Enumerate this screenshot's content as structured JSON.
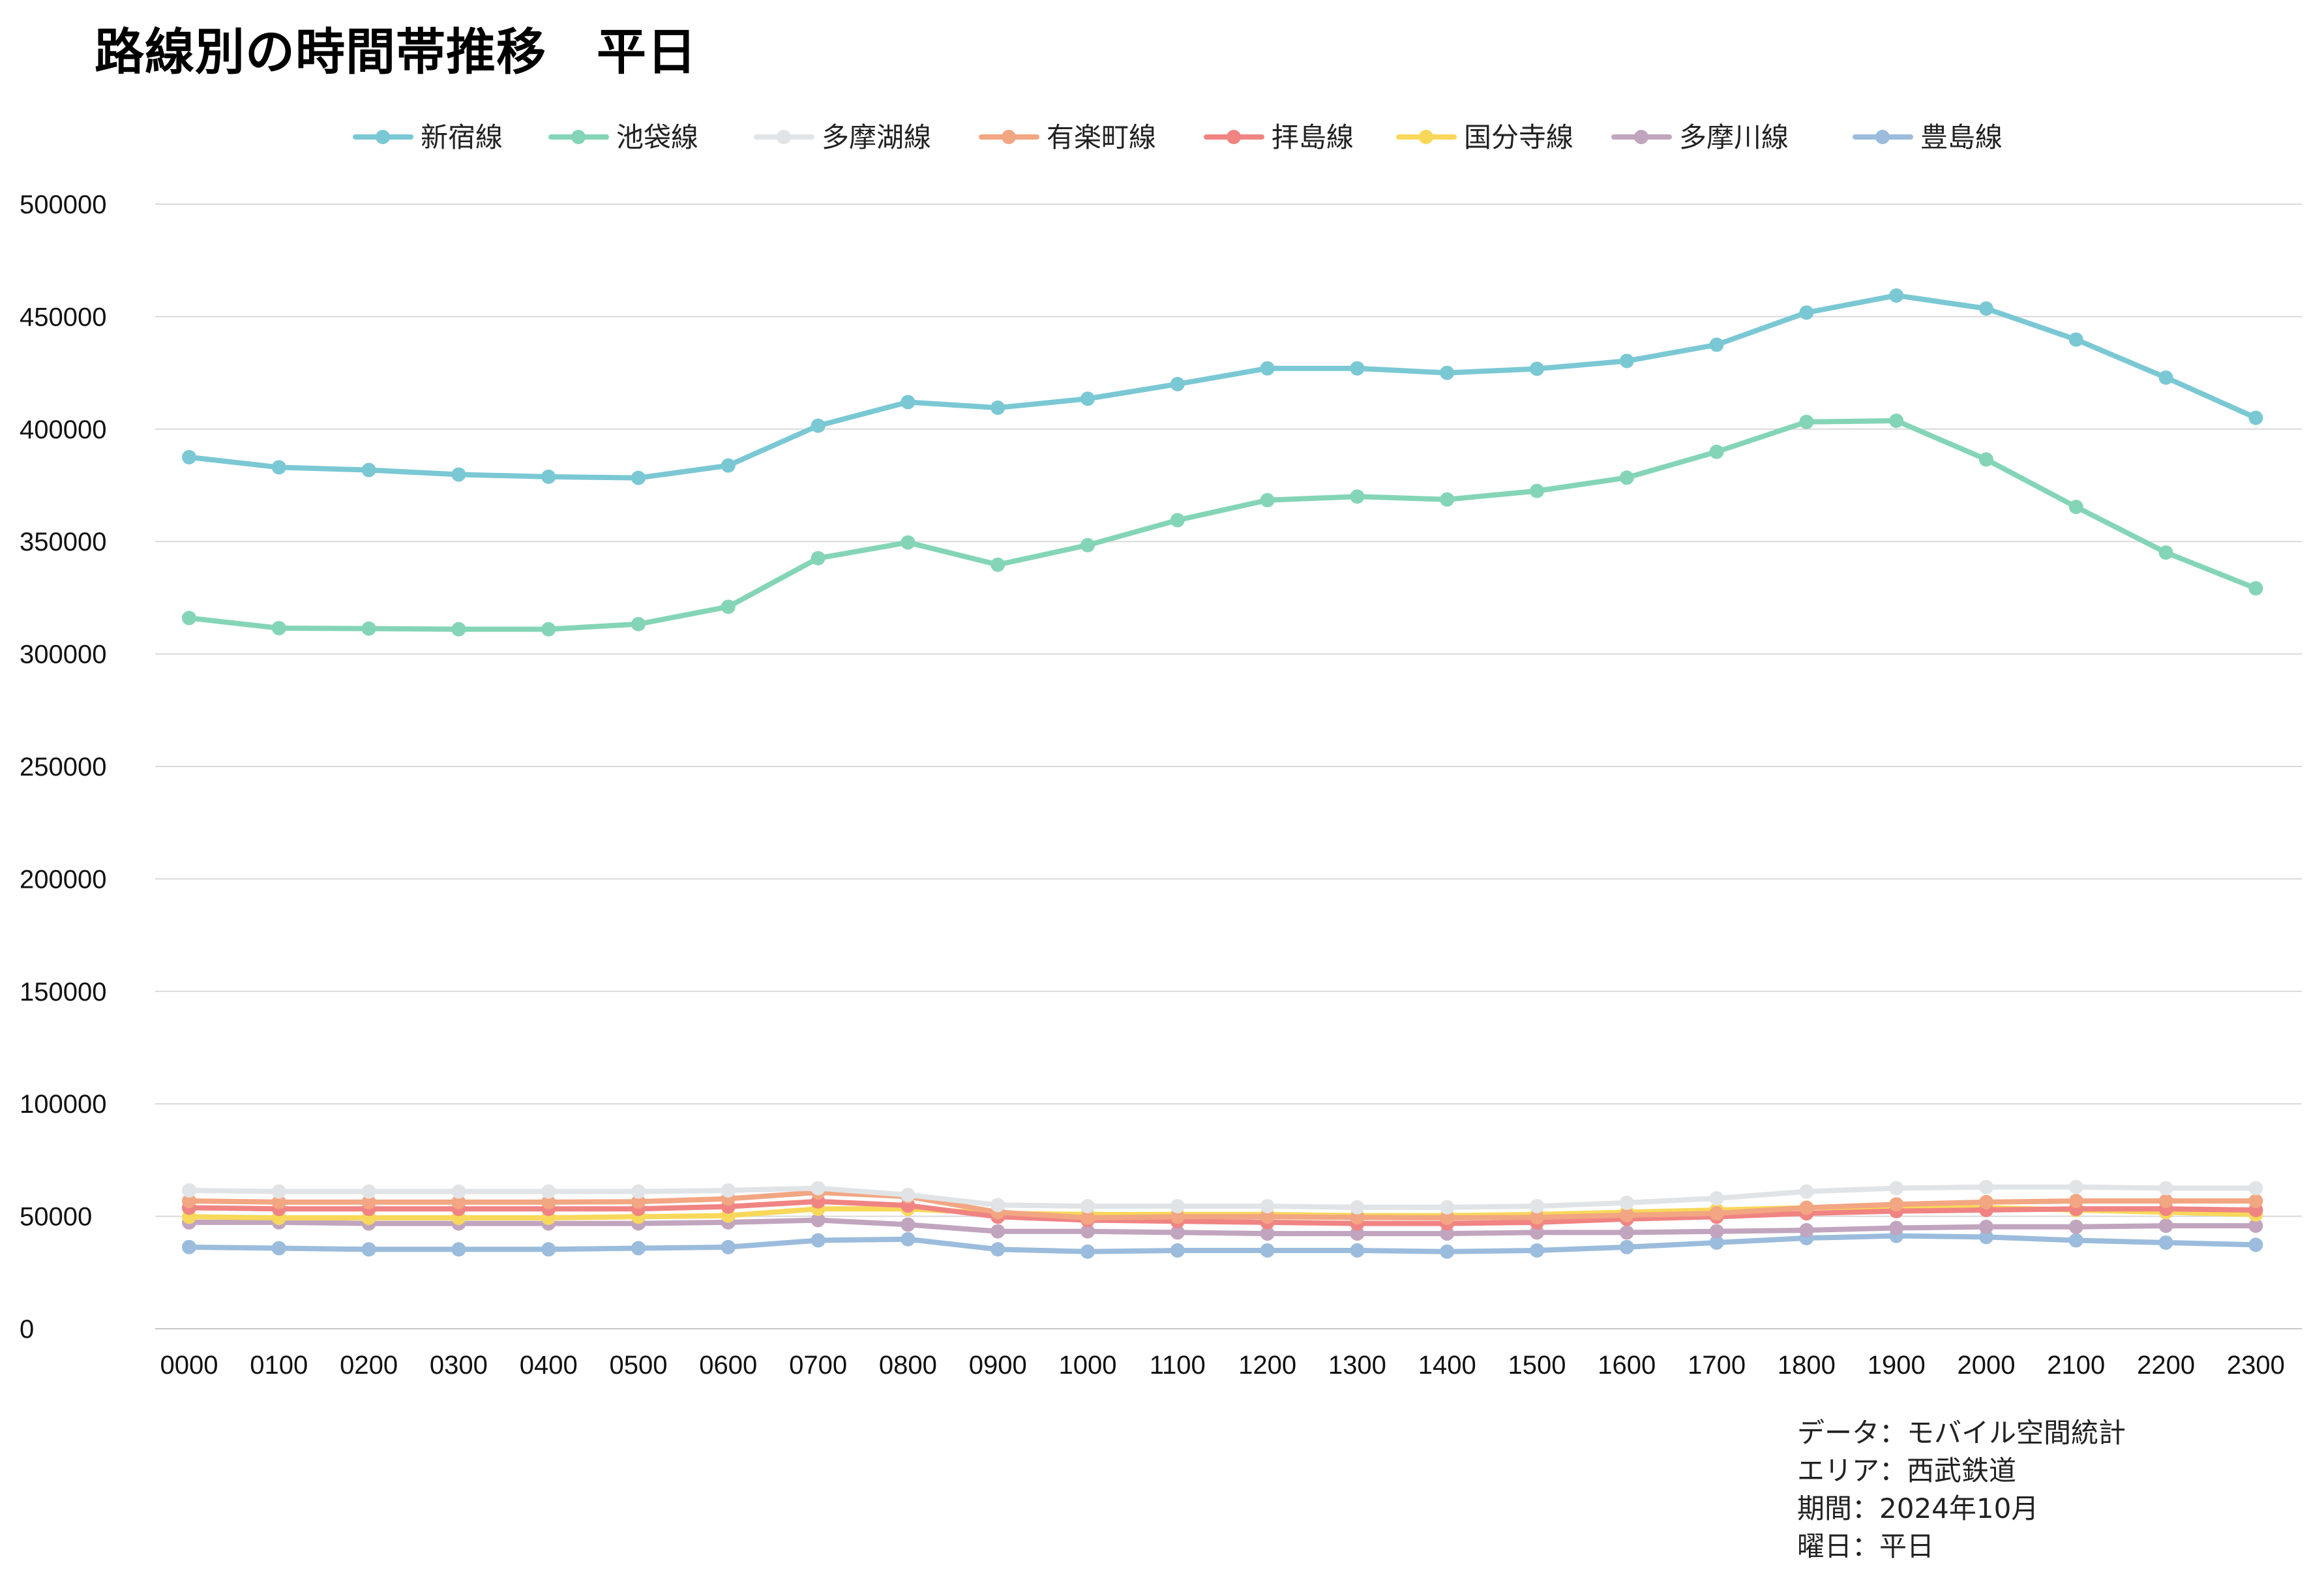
{
  "title": "路線別の時間帯推移　平日",
  "notes": {
    "data": "データ：モバイル空間統計",
    "area": "エリア：西武鉄道",
    "period": "期間：2024年10月",
    "weekday": "曜日：平日"
  },
  "chart_data": {
    "type": "line",
    "title": "路線別の時間帯推移　平日",
    "xlabel": "",
    "ylabel": "",
    "ylim": [
      0,
      500000
    ],
    "yticks": [
      0,
      50000,
      100000,
      150000,
      200000,
      250000,
      300000,
      350000,
      400000,
      450000,
      500000
    ],
    "grid": true,
    "legend_position": "top",
    "categories": [
      "0000",
      "0100",
      "0200",
      "0300",
      "0400",
      "0500",
      "0600",
      "0700",
      "0800",
      "0900",
      "1000",
      "1100",
      "1200",
      "1300",
      "1400",
      "1500",
      "1600",
      "1700",
      "1800",
      "1900",
      "2000",
      "2100",
      "2200",
      "2300"
    ],
    "series": [
      {
        "name": "新宿線",
        "color": "#7AC8D4",
        "values": [
          387500,
          383000,
          381800,
          379800,
          378800,
          378300,
          383800,
          401500,
          412000,
          409500,
          413500,
          420000,
          427000,
          427000,
          425000,
          426800,
          430300,
          437500,
          451800,
          459400,
          453600,
          439800,
          422900,
          405000
        ]
      },
      {
        "name": "池袋線",
        "color": "#84D5B7",
        "values": [
          316000,
          311500,
          311300,
          311000,
          311000,
          313300,
          321000,
          342600,
          349600,
          339700,
          348400,
          359500,
          368400,
          370000,
          368700,
          372500,
          378400,
          389900,
          403200,
          403700,
          386500,
          365400,
          345100,
          329200
        ]
      },
      {
        "name": "多摩湖線",
        "color": "#E1E4E6",
        "values": [
          61500,
          61000,
          61000,
          61000,
          61000,
          61000,
          61500,
          62500,
          59500,
          55000,
          54500,
          54500,
          54500,
          54000,
          54000,
          54500,
          56000,
          58000,
          61000,
          62500,
          63000,
          63000,
          62500,
          62500
        ]
      },
      {
        "name": "有楽町線",
        "color": "#F2A682",
        "values": [
          56800,
          56300,
          56300,
          56300,
          56300,
          56500,
          57800,
          60600,
          58800,
          51800,
          49300,
          49800,
          49800,
          49500,
          49300,
          49500,
          50500,
          51300,
          53800,
          55300,
          56300,
          56800,
          56800,
          56800
        ]
      },
      {
        "name": "拝島線",
        "color": "#F08483",
        "values": [
          53800,
          53300,
          53300,
          53300,
          53300,
          53300,
          54300,
          56600,
          54800,
          49800,
          48300,
          47800,
          47300,
          46800,
          46800,
          47300,
          48800,
          49800,
          51300,
          52300,
          52800,
          53300,
          53300,
          52800
        ]
      },
      {
        "name": "国分寺線",
        "color": "#F8D85A",
        "values": [
          49800,
          49300,
          49300,
          49300,
          49300,
          49800,
          50300,
          53300,
          53300,
          51300,
          50800,
          50800,
          50800,
          50300,
          50300,
          50800,
          51800,
          52800,
          53800,
          54300,
          53800,
          52800,
          51800,
          50800
        ]
      },
      {
        "name": "多摩川線",
        "color": "#C1A5BE",
        "values": [
          47300,
          47300,
          46800,
          46800,
          46800,
          46800,
          47300,
          48300,
          46300,
          43300,
          43300,
          42800,
          42300,
          42300,
          42300,
          42800,
          42800,
          43300,
          43800,
          44800,
          45300,
          45300,
          45800,
          45800
        ]
      },
      {
        "name": "豊島線",
        "color": "#9BBCDC",
        "values": [
          36300,
          35800,
          35300,
          35300,
          35300,
          35800,
          36300,
          39300,
          39800,
          35300,
          34300,
          34800,
          34800,
          34800,
          34300,
          34800,
          36300,
          38300,
          40300,
          41300,
          40800,
          39300,
          38300,
          37300
        ]
      }
    ]
  }
}
